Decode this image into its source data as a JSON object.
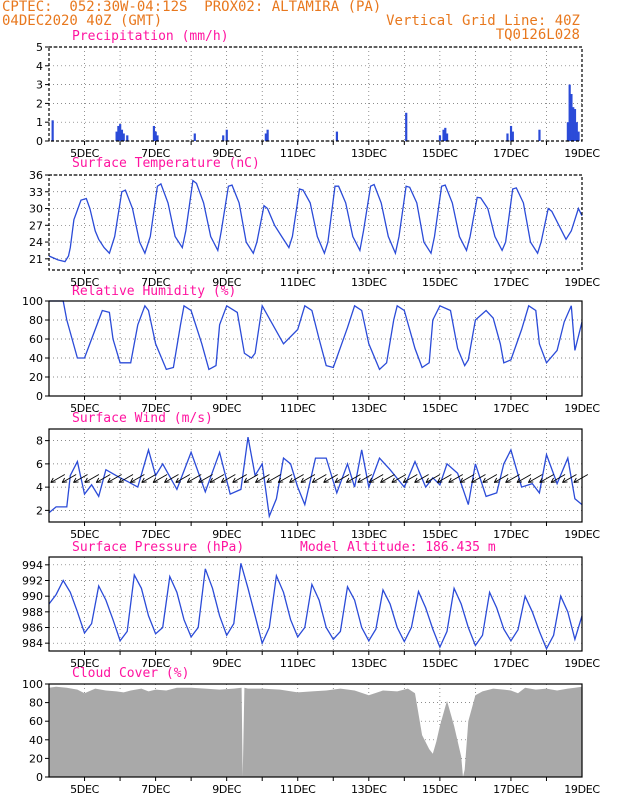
{
  "header": {
    "line1": "CPTEC:  052:30W-04:12S  PROX02: ALTAMIRA (PA)",
    "line2_left": "04DEC2020 40Z (GMT)",
    "line2_right": "Vertical Grid Line: 40Z",
    "line3_right": "TQ0126L028"
  },
  "date_ticks": [
    "5DEC",
    "7DEC",
    "9DEC",
    "11DEC",
    "13DEC",
    "15DEC",
    "17DEC",
    "19DEC"
  ],
  "colors": {
    "line": "#2b4bd8",
    "cloud": "#a9a9a9",
    "title": "#ff14a0",
    "header": "#e8781e"
  },
  "chart_data": [
    {
      "type": "bar",
      "title": "Precipitation (mm/h)",
      "ylim": [
        0,
        5
      ],
      "yticks": [
        "0",
        "1",
        "2",
        "3",
        "4",
        "5"
      ],
      "x": [
        4.1,
        5.9,
        5.95,
        6.0,
        6.05,
        6.1,
        6.2,
        6.95,
        7.0,
        7.05,
        8.1,
        8.9,
        9.0,
        10.1,
        10.15,
        12.1,
        14.05,
        15.0,
        15.1,
        15.15,
        15.2,
        16.9,
        17.0,
        17.05,
        17.8,
        18.6,
        18.65,
        18.7,
        18.75,
        18.8,
        18.85,
        18.9
      ],
      "values": [
        1.1,
        0.5,
        0.8,
        0.9,
        0.6,
        0.4,
        0.3,
        0.8,
        0.5,
        0.3,
        0.4,
        0.3,
        0.6,
        0.4,
        0.6,
        0.5,
        1.5,
        0.3,
        0.6,
        0.7,
        0.4,
        0.4,
        0.8,
        0.5,
        0.6,
        1.0,
        3.0,
        2.5,
        1.8,
        1.7,
        1.0,
        0.5
      ]
    },
    {
      "type": "line",
      "title": "Surface Temperature (nC)",
      "ylim": [
        19,
        36
      ],
      "yticks": [
        "21",
        "24",
        "27",
        "30",
        "33",
        "36"
      ],
      "x": [
        4.0,
        4.25,
        4.45,
        4.55,
        4.6,
        4.7,
        4.9,
        5.05,
        5.15,
        5.3,
        5.4,
        5.55,
        5.7,
        5.85,
        6.05,
        6.15,
        6.35,
        6.55,
        6.7,
        6.85,
        7.05,
        7.15,
        7.35,
        7.55,
        7.75,
        7.85,
        8.05,
        8.15,
        8.35,
        8.55,
        8.75,
        8.85,
        9.05,
        9.15,
        9.35,
        9.55,
        9.75,
        9.85,
        10.05,
        10.15,
        10.35,
        10.55,
        10.75,
        10.85,
        11.05,
        11.15,
        11.35,
        11.55,
        11.75,
        11.85,
        12.05,
        12.15,
        12.35,
        12.55,
        12.75,
        12.85,
        13.05,
        13.15,
        13.35,
        13.55,
        13.75,
        13.85,
        14.05,
        14.15,
        14.35,
        14.55,
        14.75,
        14.85,
        15.05,
        15.15,
        15.35,
        15.55,
        15.75,
        15.85,
        16.05,
        16.15,
        16.35,
        16.55,
        16.75,
        16.85,
        17.05,
        17.15,
        17.35,
        17.55,
        17.75,
        17.85,
        18.05,
        18.15,
        18.35,
        18.55,
        18.7,
        18.9,
        19.0
      ],
      "values": [
        21.5,
        20.8,
        20.5,
        21.5,
        23,
        28,
        31.5,
        31.8,
        30,
        26,
        24.5,
        23,
        22,
        25,
        33,
        33.3,
        30,
        24,
        22,
        25,
        34,
        34.4,
        31,
        25,
        23,
        26,
        35,
        34.5,
        31,
        25,
        22.5,
        26,
        34,
        34.2,
        31,
        24,
        22,
        24,
        30.5,
        30,
        27,
        25,
        23,
        25,
        33.5,
        33.3,
        31,
        25,
        22,
        24,
        34,
        34,
        31,
        25,
        22.5,
        26,
        34,
        34.3,
        31,
        25,
        22,
        25,
        34,
        33.8,
        31,
        24,
        22,
        25,
        34,
        34.2,
        31,
        25,
        22.5,
        25,
        32,
        31.9,
        30,
        25,
        22.5,
        24,
        33.5,
        33.7,
        31,
        24,
        22,
        24,
        30,
        29.5,
        27,
        24.5,
        26,
        30,
        28.7
      ]
    },
    {
      "type": "line",
      "title": "Relative Humidity (%)",
      "ylim": [
        0,
        100
      ],
      "yticks": [
        "0",
        "20",
        "40",
        "60",
        "80",
        "100"
      ],
      "x": [
        4.0,
        4.4,
        4.5,
        4.8,
        5.0,
        5.3,
        5.5,
        5.7,
        5.8,
        6.0,
        6.3,
        6.5,
        6.7,
        6.8,
        7.0,
        7.3,
        7.5,
        7.7,
        7.8,
        8.0,
        8.3,
        8.5,
        8.7,
        8.8,
        9.0,
        9.3,
        9.5,
        9.7,
        9.8,
        10.0,
        10.6,
        11.0,
        11.2,
        11.4,
        11.6,
        11.8,
        12.0,
        12.4,
        12.6,
        12.8,
        13.0,
        13.3,
        13.5,
        13.7,
        13.8,
        14.0,
        14.3,
        14.5,
        14.7,
        14.8,
        15.0,
        15.3,
        15.5,
        15.7,
        15.8,
        16.0,
        16.3,
        16.5,
        16.7,
        16.8,
        17.0,
        17.3,
        17.5,
        17.7,
        17.8,
        18.0,
        18.3,
        18.5,
        18.7,
        18.8,
        19.0
      ],
      "values": [
        100,
        100,
        80,
        40,
        40,
        70,
        90,
        88,
        60,
        35,
        35,
        75,
        95,
        90,
        55,
        28,
        30,
        75,
        95,
        90,
        55,
        28,
        32,
        75,
        95,
        88,
        45,
        40,
        45,
        95,
        55,
        70,
        95,
        90,
        60,
        32,
        30,
        72,
        95,
        90,
        55,
        28,
        35,
        80,
        95,
        90,
        50,
        30,
        35,
        80,
        95,
        90,
        50,
        32,
        38,
        80,
        90,
        82,
        55,
        35,
        38,
        70,
        95,
        90,
        55,
        35,
        48,
        78,
        95,
        48,
        78
      ]
    },
    {
      "type": "line",
      "title": "Surface Wind (m/s)",
      "ylim": [
        1,
        9
      ],
      "yticks": [
        "2",
        "4",
        "6",
        "8"
      ],
      "x": [
        4.0,
        4.2,
        4.5,
        4.6,
        4.8,
        5.0,
        5.2,
        5.4,
        5.6,
        6.0,
        6.2,
        6.5,
        6.8,
        7.0,
        7.2,
        7.6,
        8.0,
        8.4,
        8.8,
        9.1,
        9.4,
        9.6,
        9.8,
        10.0,
        10.2,
        10.4,
        10.6,
        10.8,
        11.0,
        11.2,
        11.5,
        11.8,
        12.1,
        12.4,
        12.6,
        12.8,
        13.0,
        13.3,
        13.6,
        14.0,
        14.3,
        14.6,
        14.8,
        15.0,
        15.2,
        15.5,
        15.8,
        16.0,
        16.3,
        16.6,
        16.8,
        17.0,
        17.3,
        17.6,
        17.8,
        18.0,
        18.3,
        18.6,
        18.8,
        19.0
      ],
      "values": [
        1.8,
        2.3,
        2.3,
        5,
        6.2,
        3.4,
        4.2,
        3.2,
        5.5,
        4.8,
        4.5,
        4.0,
        7.2,
        5,
        6,
        3.8,
        7,
        3.6,
        7,
        3.4,
        3.8,
        8.3,
        5,
        6,
        1.5,
        3,
        6.5,
        6,
        4,
        2.5,
        6.5,
        6.5,
        3.5,
        6,
        4,
        7.2,
        4,
        6.5,
        5.5,
        4,
        6.2,
        4,
        4.8,
        4.2,
        6,
        5.2,
        2.5,
        6,
        3.2,
        3.5,
        6,
        7.2,
        4,
        4.3,
        3.5,
        6.8,
        4.3,
        6.5,
        3,
        2.5
      ]
    },
    {
      "type": "line",
      "title": "Surface Pressure (hPa)",
      "subtitle": "Model Altitude: 186.435 m",
      "ylim": [
        983,
        995
      ],
      "yticks": [
        "984",
        "986",
        "988",
        "990",
        "992",
        "994"
      ],
      "x": [
        4.0,
        4.2,
        4.4,
        4.6,
        4.8,
        5.0,
        5.2,
        5.4,
        5.6,
        5.8,
        6.0,
        6.2,
        6.4,
        6.6,
        6.8,
        7.0,
        7.2,
        7.4,
        7.6,
        7.8,
        8.0,
        8.2,
        8.4,
        8.6,
        8.8,
        9.0,
        9.2,
        9.4,
        9.6,
        9.8,
        10.0,
        10.2,
        10.4,
        10.6,
        10.8,
        11.0,
        11.2,
        11.4,
        11.6,
        11.8,
        12.0,
        12.2,
        12.4,
        12.6,
        12.8,
        13.0,
        13.2,
        13.4,
        13.6,
        13.8,
        14.0,
        14.2,
        14.4,
        14.6,
        14.8,
        15.0,
        15.2,
        15.4,
        15.6,
        15.8,
        16.0,
        16.2,
        16.4,
        16.6,
        16.8,
        17.0,
        17.2,
        17.4,
        17.6,
        17.8,
        18.0,
        18.2,
        18.4,
        18.6,
        18.8,
        19.0
      ],
      "values": [
        989,
        990.2,
        992,
        990.5,
        988,
        985.3,
        986.5,
        991.3,
        989.5,
        987,
        984.3,
        985.5,
        992.7,
        991,
        987.5,
        985.2,
        986,
        992.5,
        990.5,
        987,
        984.8,
        986,
        993.5,
        991,
        987.5,
        985,
        986.5,
        994.2,
        991,
        987.5,
        984,
        986,
        992.6,
        990.5,
        987,
        984.8,
        986,
        991.5,
        989.5,
        986,
        984.5,
        985.5,
        991.2,
        989.5,
        986,
        984.3,
        985.8,
        990.8,
        989,
        986,
        984.2,
        986,
        990.6,
        988.5,
        985.8,
        983.5,
        985.5,
        991,
        989,
        986,
        983.7,
        985,
        990.5,
        988.5,
        985.8,
        984.3,
        985.7,
        990,
        988,
        985.5,
        983.3,
        985,
        990,
        988,
        984.5,
        987.5
      ]
    },
    {
      "type": "area",
      "title": "Cloud Cover (%)",
      "ylim": [
        0,
        100
      ],
      "yticks": [
        "0",
        "20",
        "40",
        "60",
        "80",
        "100"
      ],
      "x": [
        4.0,
        4.2,
        4.5,
        4.8,
        5.0,
        5.3,
        5.6,
        5.9,
        6.1,
        6.3,
        6.6,
        6.8,
        7.0,
        7.3,
        7.6,
        8.0,
        8.4,
        8.8,
        9.2,
        9.42,
        9.45,
        9.5,
        9.6,
        10.0,
        10.5,
        11.0,
        11.4,
        11.8,
        12.2,
        12.6,
        13.0,
        13.4,
        13.8,
        14.1,
        14.3,
        14.5,
        14.7,
        14.8,
        14.9,
        15.0,
        15.2,
        15.4,
        15.6,
        15.65,
        15.7,
        15.8,
        16.0,
        16.2,
        16.5,
        16.8,
        17.0,
        17.2,
        17.4,
        17.7,
        18.0,
        18.3,
        18.6,
        18.8,
        19.0
      ],
      "values": [
        96,
        97,
        96,
        94,
        90,
        95,
        93,
        92,
        91,
        93,
        95,
        92,
        94,
        93,
        96,
        96,
        95,
        94,
        95,
        96,
        0,
        96,
        95,
        95,
        94,
        91,
        92,
        93,
        95,
        93,
        88,
        93,
        92,
        95,
        90,
        45,
        30,
        25,
        38,
        55,
        82,
        55,
        22,
        0,
        8,
        60,
        88,
        92,
        95,
        94,
        93,
        90,
        96,
        94,
        95,
        93,
        95,
        96,
        97
      ]
    }
  ]
}
